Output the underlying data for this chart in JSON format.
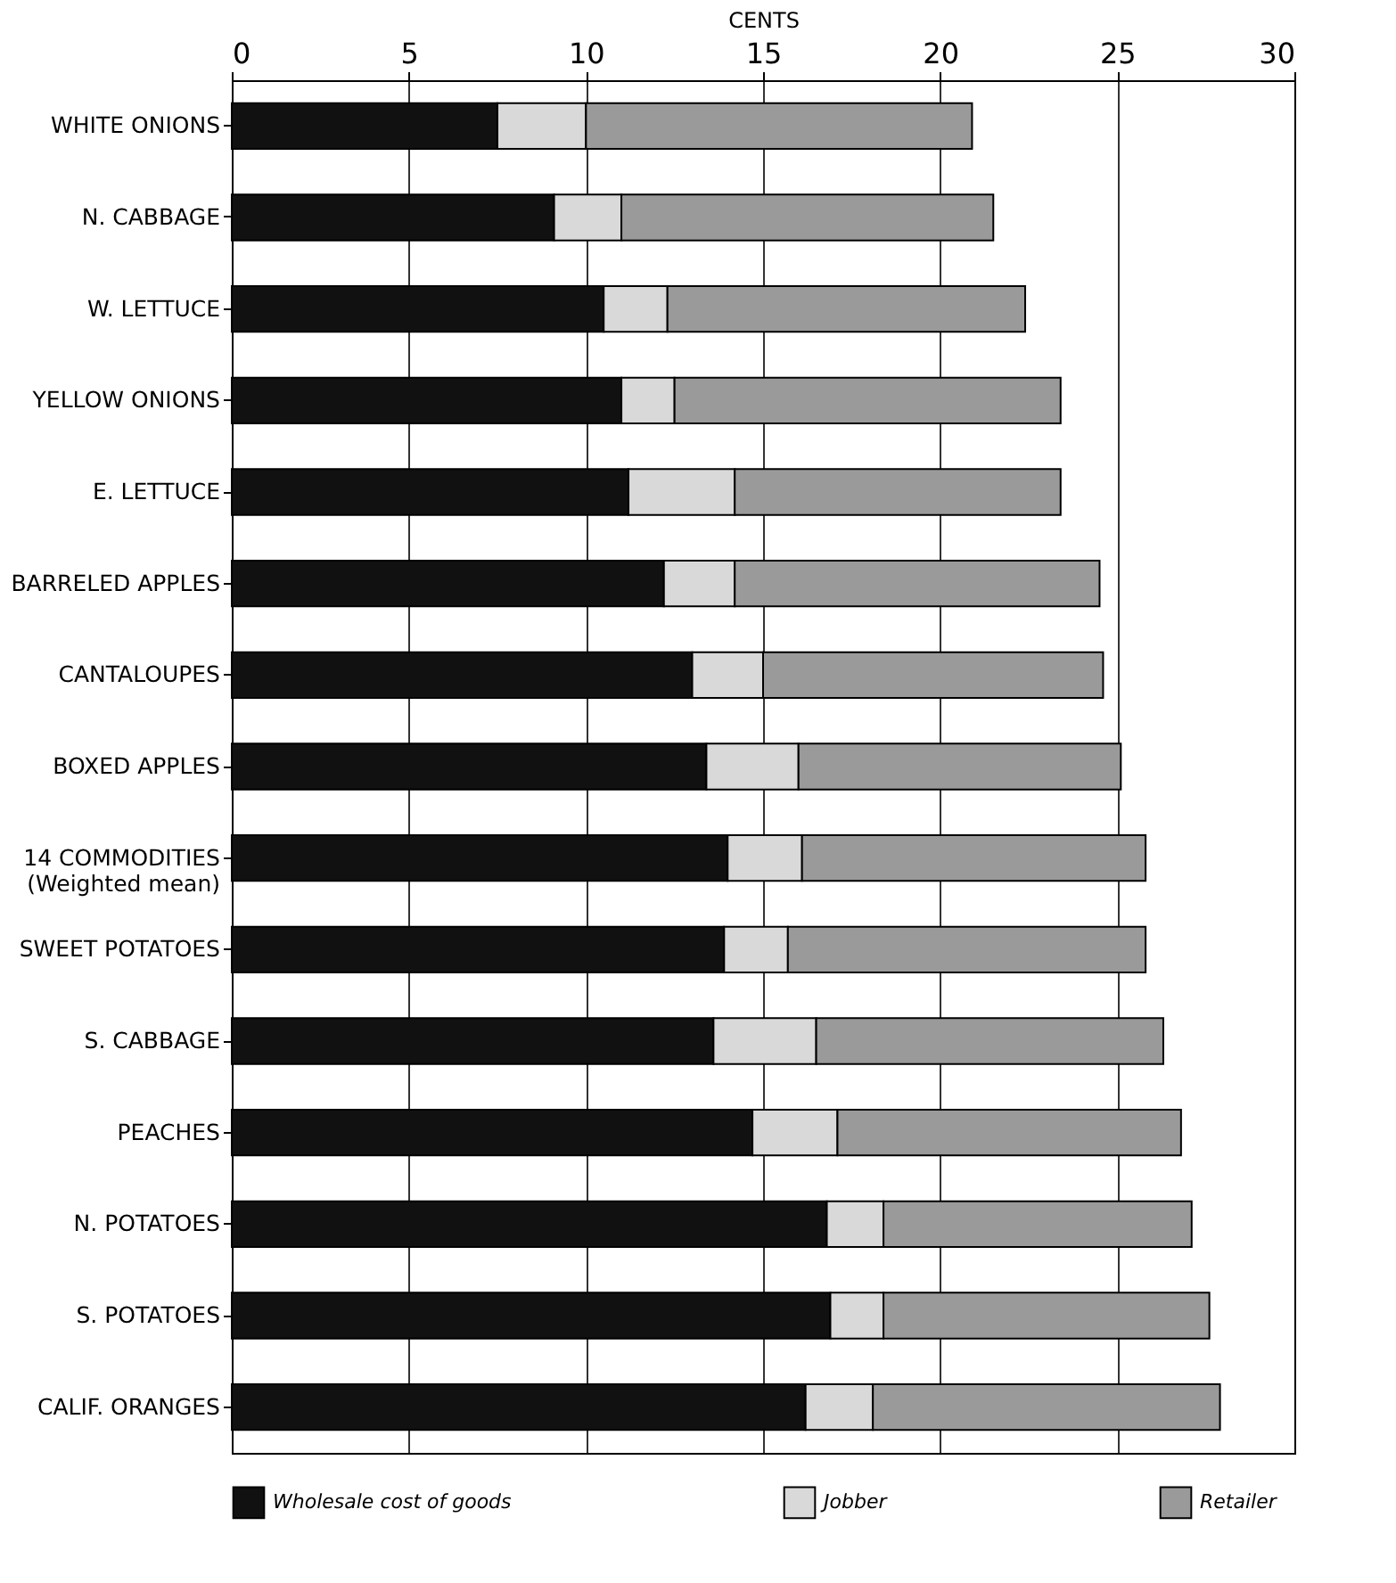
{
  "chart_data": {
    "type": "bar",
    "orientation": "horizontal",
    "stacked": true,
    "xlabel": "CENTS",
    "categories": [
      "WHITE ONIONS",
      "N. CABBAGE",
      "W. LETTUCE",
      "YELLOW ONIONS",
      "E. LETTUCE",
      "BARRELED APPLES",
      "CANTALOUPES",
      "BOXED APPLES",
      "14 COMMODITIES\n(Weighted mean)",
      "SWEET POTATOES",
      "S. CABBAGE",
      "PEACHES",
      "N. POTATOES",
      "S. POTATOES",
      "CALIF. ORANGES"
    ],
    "series": [
      {
        "name": "Wholesale cost of goods",
        "color": "#111111",
        "values": [
          7.5,
          9.1,
          10.5,
          11.0,
          11.2,
          12.2,
          13.0,
          13.4,
          14.0,
          13.9,
          13.6,
          14.7,
          16.8,
          16.9,
          16.2
        ]
      },
      {
        "name": "Jobber",
        "color": "#d9d9d9",
        "values": [
          2.5,
          1.9,
          1.8,
          1.5,
          3.0,
          2.0,
          2.0,
          2.6,
          2.1,
          1.8,
          2.9,
          2.4,
          1.6,
          1.5,
          1.9
        ]
      },
      {
        "name": "Retailer",
        "color": "#9a9a9a",
        "values": [
          10.9,
          10.5,
          10.1,
          10.9,
          9.2,
          10.3,
          9.6,
          9.1,
          9.7,
          10.1,
          9.8,
          9.7,
          8.7,
          9.2,
          9.8
        ]
      }
    ],
    "xlim": [
      0,
      30
    ],
    "xticks": [
      0,
      5,
      10,
      15,
      20,
      25,
      30
    ],
    "grid": "x",
    "legend": "bottom"
  }
}
